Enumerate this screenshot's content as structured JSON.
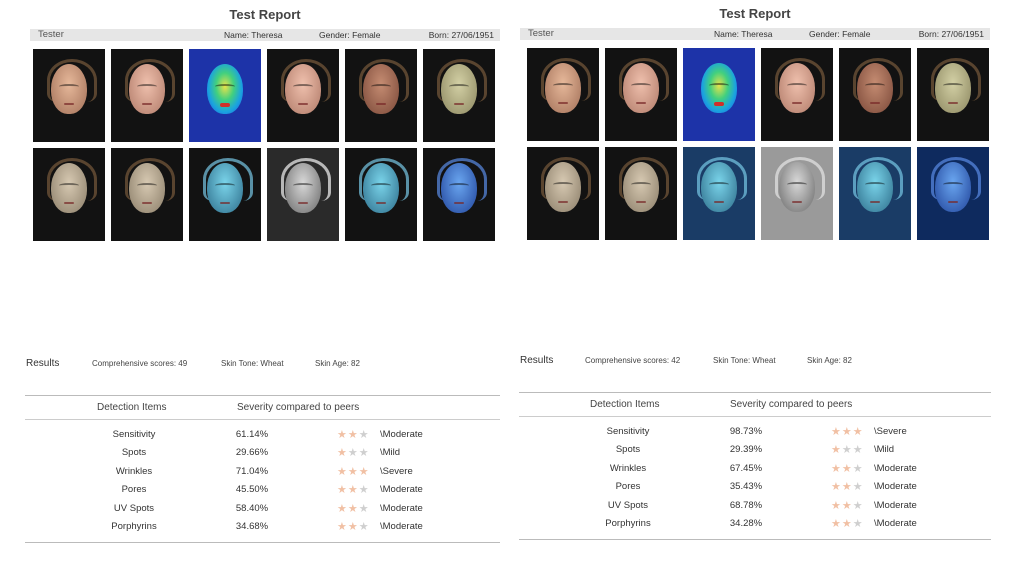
{
  "reports": [
    {
      "title": "Test Report",
      "tester": "Tester",
      "name": "Name: Theresa",
      "gender": "Gender: Female",
      "born": "Born: 27/06/1951"
    },
    {
      "title": "Test Report",
      "tester": "Tester",
      "name": "Name: Theresa",
      "gender": "Gender: Female",
      "born": "Born: 27/06/1951"
    }
  ],
  "photo_icons": [
    "face-photo-icon"
  ],
  "results": [
    {
      "label": "Results",
      "comprehensive": "Comprehensive scores: 49",
      "skin_tone": "Skin Tone: Wheat",
      "skin_age": "Skin Age: 82",
      "col_items": "Detection Items",
      "col_severity": "Severity compared to peers",
      "rows": [
        {
          "item": "Sensitivity",
          "pct": "61.14%",
          "stars": 2,
          "severity": "\\Moderate"
        },
        {
          "item": "Spots",
          "pct": "29.66%",
          "stars": 1,
          "severity": "\\Mild"
        },
        {
          "item": "Wrinkles",
          "pct": "71.04%",
          "stars": 3,
          "severity": "\\Severe"
        },
        {
          "item": "Pores",
          "pct": "45.50%",
          "stars": 2,
          "severity": "\\Moderate"
        },
        {
          "item": "UV Spots",
          "pct": "58.40%",
          "stars": 2,
          "severity": "\\Moderate"
        },
        {
          "item": "Porphyrins",
          "pct": "34.68%",
          "stars": 2,
          "severity": "\\Moderate"
        }
      ]
    },
    {
      "label": "Results",
      "comprehensive": "Comprehensive scores: 42",
      "skin_tone": "Skin Tone: Wheat",
      "skin_age": "Skin Age: 82",
      "col_items": "Detection Items",
      "col_severity": "Severity compared to peers",
      "rows": [
        {
          "item": "Sensitivity",
          "pct": "98.73%",
          "stars": 3,
          "severity": "\\Severe"
        },
        {
          "item": "Spots",
          "pct": "29.39%",
          "stars": 1,
          "severity": "\\Mild"
        },
        {
          "item": "Wrinkles",
          "pct": "67.45%",
          "stars": 2,
          "severity": "\\Moderate"
        },
        {
          "item": "Pores",
          "pct": "35.43%",
          "stars": 2,
          "severity": "\\Moderate"
        },
        {
          "item": "UV Spots",
          "pct": "68.78%",
          "stars": 2,
          "severity": "\\Moderate"
        },
        {
          "item": "Porphyrins",
          "pct": "34.28%",
          "stars": 2,
          "severity": "\\Moderate"
        }
      ]
    }
  ],
  "colors": {
    "star_on": "#f1c0a4",
    "star_off": "#cfcfcf",
    "info_bar": "#e6e6e6"
  }
}
